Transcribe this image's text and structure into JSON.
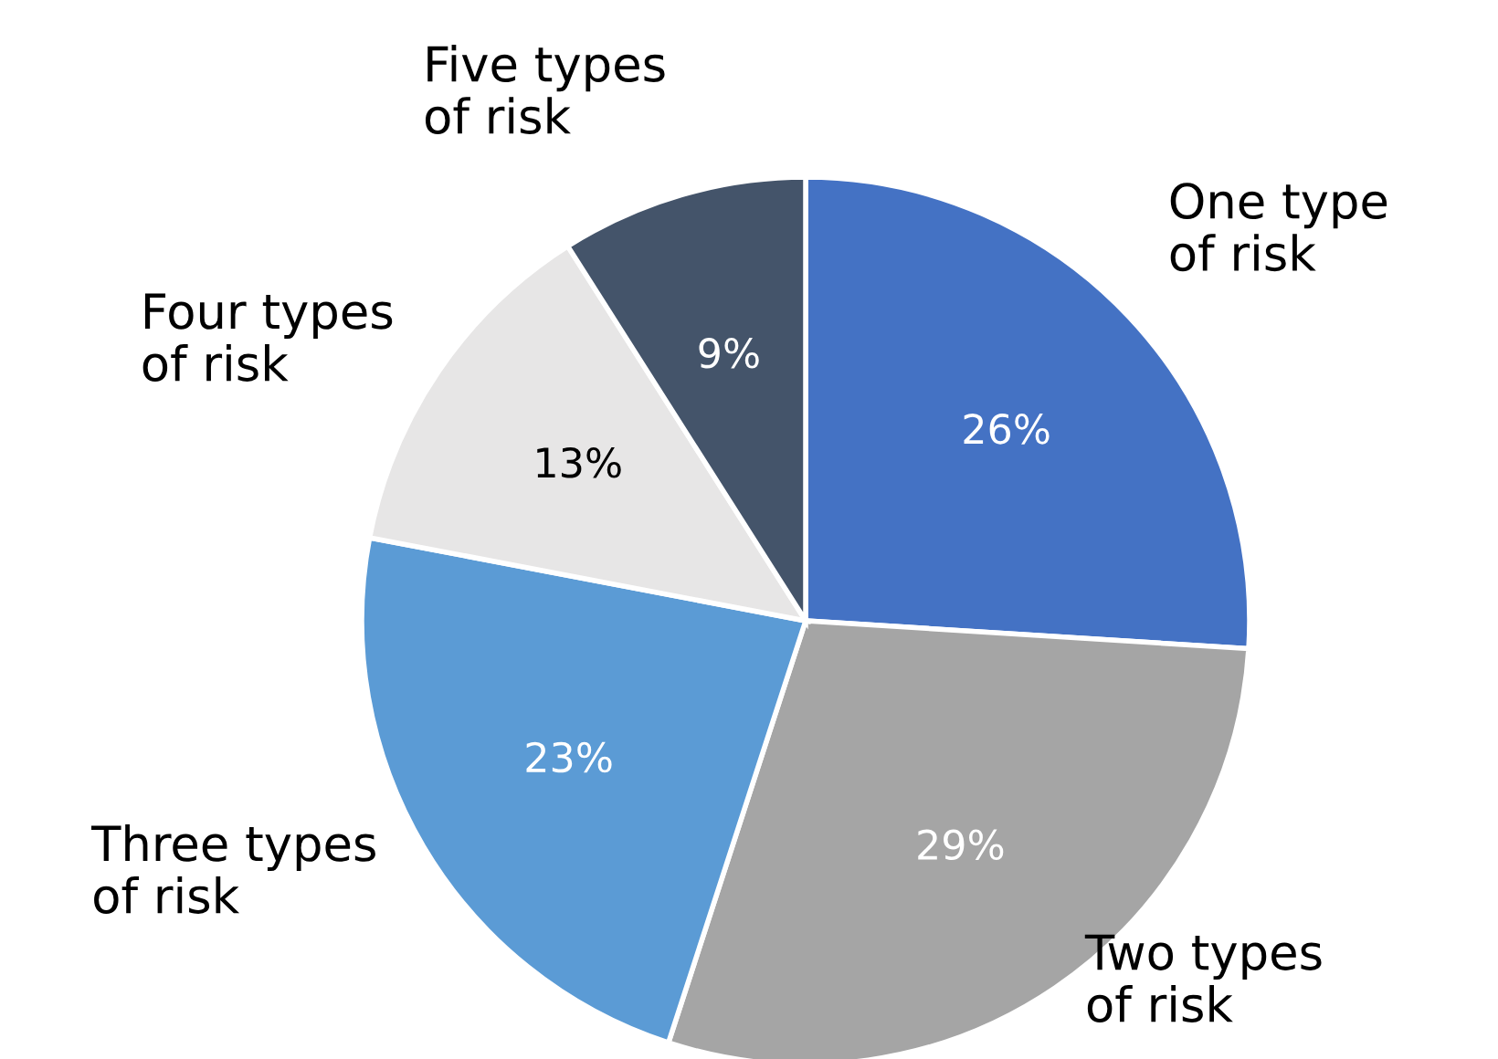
{
  "chart_data": {
    "type": "pie",
    "categories": [
      "One type\nof risk",
      "Two types\nof risk",
      "Three types\nof risk",
      "Four types\nof risk",
      "Five types\nof risk"
    ],
    "values": [
      26,
      29,
      23,
      13,
      9
    ],
    "value_labels": [
      "26%",
      "29%",
      "23%",
      "13%",
      "9%"
    ],
    "colors": [
      "#4472c4",
      "#a5a5a5",
      "#5b9bd5",
      "#e7e6e6",
      "#44546a"
    ],
    "legend": false
  }
}
